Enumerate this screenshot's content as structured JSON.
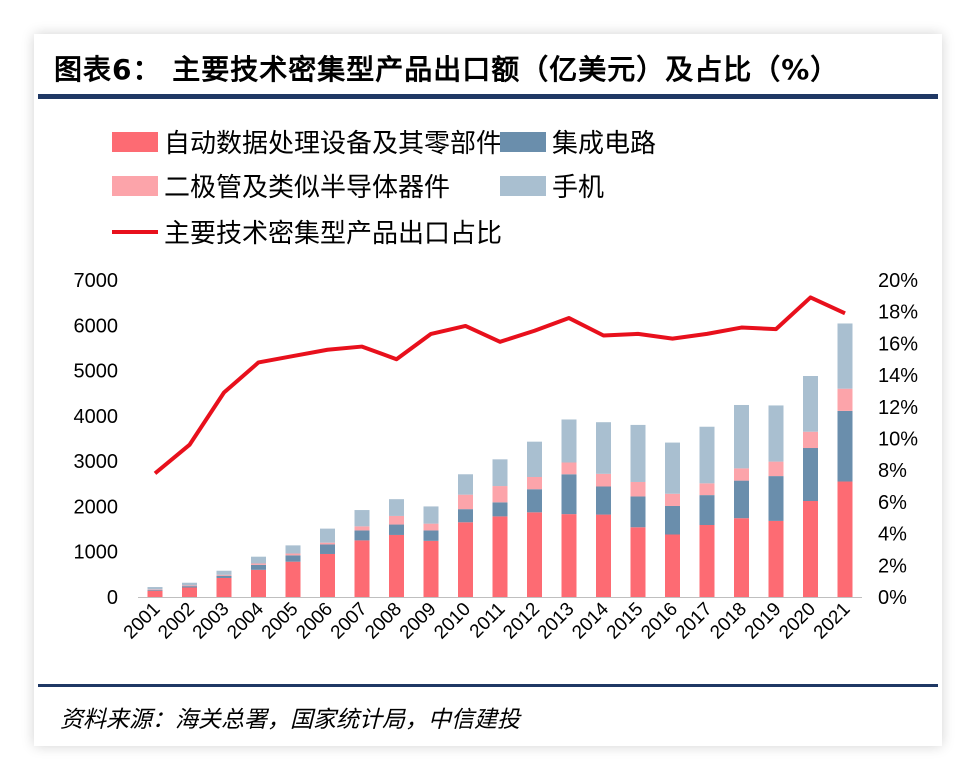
{
  "header": {
    "title": "图表6：  主要技术密集型产品出口额（亿美元）及占比（%）"
  },
  "footer": {
    "source": "资料来源：海关总署，国家统计局，中信建投"
  },
  "colors": {
    "series1": "#fd6b73",
    "series2": "#6a8eac",
    "series3": "#fca4aa",
    "series4": "#a9bfd0",
    "line": "#e8101c",
    "rule": "#1f3864"
  },
  "chart_data": {
    "type": "bar",
    "stacked": true,
    "categories": [
      "2001",
      "2002",
      "2003",
      "2004",
      "2005",
      "2006",
      "2007",
      "2008",
      "2009",
      "2010",
      "2011",
      "2012",
      "2013",
      "2014",
      "2015",
      "2016",
      "2017",
      "2018",
      "2019",
      "2020",
      "2021"
    ],
    "series": [
      {
        "name": "自动数据处理设备及其零部件",
        "values": [
          140,
          210,
          420,
          600,
          780,
          950,
          1250,
          1370,
          1240,
          1650,
          1780,
          1870,
          1830,
          1820,
          1540,
          1380,
          1590,
          1740,
          1680,
          2120,
          2550
        ]
      },
      {
        "name": "集成电路",
        "values": [
          20,
          30,
          50,
          110,
          140,
          210,
          220,
          230,
          230,
          290,
          310,
          510,
          880,
          620,
          680,
          630,
          660,
          830,
          990,
          1170,
          1560
        ]
      },
      {
        "name": "二极管及类似半导体器件",
        "values": [
          10,
          15,
          20,
          30,
          40,
          40,
          90,
          190,
          150,
          320,
          360,
          270,
          260,
          280,
          320,
          270,
          260,
          270,
          320,
          360,
          490
        ]
      },
      {
        "name": "手机",
        "values": [
          50,
          60,
          90,
          150,
          180,
          310,
          360,
          370,
          380,
          450,
          590,
          780,
          950,
          1140,
          1260,
          1130,
          1250,
          1400,
          1240,
          1230,
          1440
        ]
      }
    ],
    "line_series": {
      "name": "主要技术密集型产品出口占比",
      "axis": "right",
      "values": [
        7.8,
        9.6,
        12.9,
        14.8,
        15.2,
        15.6,
        15.8,
        15.0,
        16.6,
        17.1,
        16.1,
        16.8,
        17.6,
        16.5,
        16.6,
        16.3,
        16.6,
        17.0,
        16.9,
        18.9,
        17.9
      ]
    },
    "y_left": {
      "min": 0,
      "max": 7000,
      "ticks": [
        "0",
        "1000",
        "2000",
        "3000",
        "4000",
        "5000",
        "6000",
        "7000"
      ]
    },
    "y_right": {
      "min": 0,
      "max": 20,
      "ticks": [
        "0%",
        "2%",
        "4%",
        "6%",
        "8%",
        "10%",
        "12%",
        "14%",
        "16%",
        "18%",
        "20%"
      ]
    },
    "legend_position": "top-left",
    "grid": false
  }
}
